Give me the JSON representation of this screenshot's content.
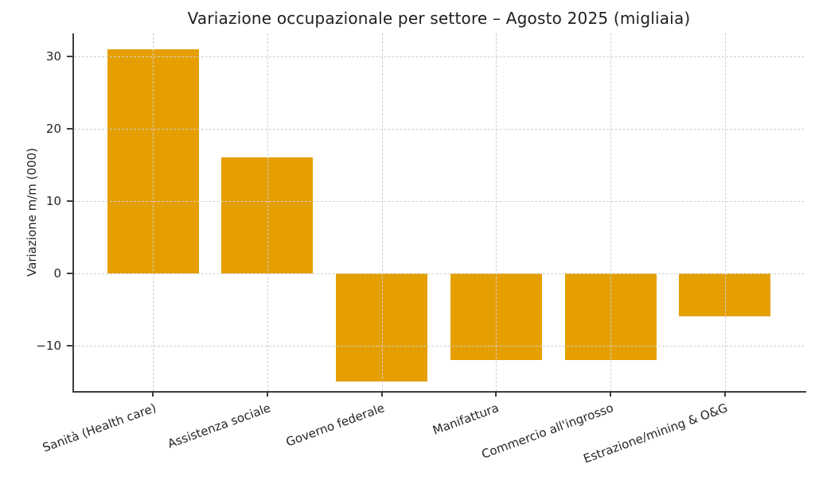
{
  "chart_data": {
    "type": "bar",
    "title": "Variazione occupazionale per settore – Agosto 2025 (migliaia)",
    "xlabel": "",
    "ylabel": "Variazione m/m (000)",
    "categories": [
      "Sanità (Health care)",
      "Assistenza sociale",
      "Governo federale",
      "Manifattura",
      "Commercio all'ingrosso",
      "Estrazione/mining & O&G"
    ],
    "values": [
      31,
      16,
      -15,
      -12,
      -12,
      -6
    ],
    "yticks": [
      -10,
      0,
      10,
      20,
      30
    ],
    "ylim": [
      -16.3,
      33.2
    ],
    "xlim": [
      -0.69,
      5.69
    ],
    "bar_width": 0.8,
    "grid": true,
    "legend": "none",
    "x_label_rotation_deg": 20,
    "colors": {
      "bar": "#E69F00",
      "grid": "#cfcfcf",
      "axis": "#3c3c3c",
      "text": "#262626",
      "background": "#ffffff"
    }
  }
}
